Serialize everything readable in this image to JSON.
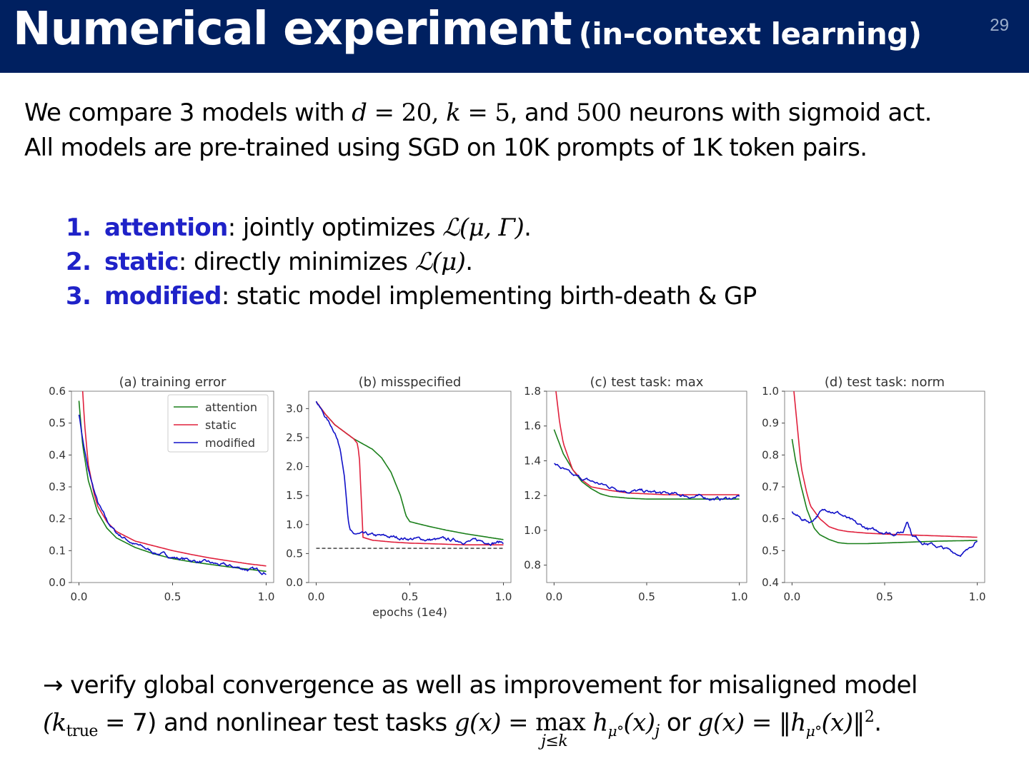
{
  "slide": {
    "title_main": "Numerical experiment",
    "title_sub": "(in-context learning)",
    "page_number": "29"
  },
  "intro": {
    "l1_a": "We compare 3 models with ",
    "l1_d": "d",
    "l1_eq1": " = 20, ",
    "l1_k": "k",
    "l1_eq2": " = 5",
    "l1_b": ", and ",
    "l1_n": "500",
    "l1_c": " neurons with sigmoid act.",
    "l2": "All models are pre-trained using SGD on 10K prompts of 1K token pairs."
  },
  "models": [
    {
      "num": "1.",
      "name": "attention",
      "desc": ": jointly optimizes ",
      "math": "ℒ(μ, Γ)",
      "end": "."
    },
    {
      "num": "2.",
      "name": "static",
      "desc": ": directly minimizes ",
      "math": "ℒ(μ)",
      "end": "."
    },
    {
      "num": "3.",
      "name": "modified",
      "desc": ": static model implementing birth-death & GP",
      "math": "",
      "end": ""
    }
  ],
  "conclusion": {
    "l1": "→ verify global convergence as well as improvement for misaligned model",
    "l2_a": "(k",
    "l2_sub": "true",
    "l2_b": " = 7) and nonlinear test tasks ",
    "l2_g1": "g(x) = ",
    "l2_max": "max",
    "l2_maxsub": "j≤k",
    "l2_h1": " h",
    "l2_hsub": "μ°",
    "l2_h1b": "(x)",
    "l2_jsub": "j",
    "l2_or": " or ",
    "l2_g2": "g(x) = ‖h",
    "l2_h2sub": "μ°",
    "l2_g2b": "(x)‖",
    "l2_sup": "2",
    "l2_end": "."
  },
  "colors": {
    "title_bg": "#002060",
    "highlight": "#1f22c8",
    "attention": "#1a7f1a",
    "static": "#e0203c",
    "modified": "#1010c8",
    "baseline": "#000000"
  },
  "chart_data": [
    {
      "type": "line",
      "title": "(a) training error",
      "xlabel": "",
      "xlim": [
        -0.04,
        1.04
      ],
      "ylim": [
        0.0,
        0.6
      ],
      "xticks": [
        0.0,
        0.5,
        1.0
      ],
      "xtick_labels": [
        "0.0",
        "0.5",
        "1.0"
      ],
      "yticks": [
        0.0,
        0.1,
        0.2,
        0.3,
        0.4,
        0.5,
        0.6
      ],
      "ytick_labels": [
        "0.0",
        "0.1",
        "0.2",
        "0.3",
        "0.4",
        "0.5",
        "0.6"
      ],
      "legend": {
        "placement": "top-right",
        "entries": [
          "attention",
          "static",
          "modified"
        ]
      },
      "series": [
        {
          "name": "attention",
          "noisy": false,
          "x": [
            0,
            0.02,
            0.05,
            0.1,
            0.15,
            0.2,
            0.3,
            0.4,
            0.5,
            0.6,
            0.7,
            0.8,
            0.9,
            1.0
          ],
          "y": [
            0.57,
            0.43,
            0.32,
            0.22,
            0.17,
            0.14,
            0.11,
            0.09,
            0.075,
            0.065,
            0.057,
            0.049,
            0.042,
            0.035
          ]
        },
        {
          "name": "static",
          "noisy": false,
          "x": [
            0.02,
            0.03,
            0.05,
            0.08,
            0.1,
            0.15,
            0.2,
            0.3,
            0.4,
            0.5,
            0.6,
            0.7,
            0.8,
            0.9,
            1.0
          ],
          "y": [
            0.6,
            0.5,
            0.37,
            0.28,
            0.24,
            0.19,
            0.16,
            0.13,
            0.115,
            0.1,
            0.088,
            0.077,
            0.068,
            0.059,
            0.052
          ]
        },
        {
          "name": "modified",
          "noisy": true,
          "x": [
            0,
            0.02,
            0.05,
            0.1,
            0.15,
            0.2,
            0.3,
            0.4,
            0.5,
            0.6,
            0.7,
            0.8,
            0.9,
            1.0
          ],
          "y": [
            0.53,
            0.45,
            0.35,
            0.25,
            0.19,
            0.155,
            0.12,
            0.095,
            0.08,
            0.07,
            0.06,
            0.05,
            0.042,
            0.033
          ]
        }
      ]
    },
    {
      "type": "line",
      "title": "(b) misspecified",
      "xlabel": "epochs (1e4)",
      "xlim": [
        -0.04,
        1.04
      ],
      "ylim": [
        0.0,
        3.3
      ],
      "xticks": [
        0.0,
        0.5,
        1.0
      ],
      "xtick_labels": [
        "0.0",
        "0.5",
        "1.0"
      ],
      "yticks": [
        0.0,
        0.5,
        1.0,
        1.5,
        2.0,
        2.5,
        3.0
      ],
      "ytick_labels": [
        "0.0",
        "0.5",
        "1.0",
        "1.5",
        "2.0",
        "2.5",
        "3.0"
      ],
      "baseline": 0.59,
      "series": [
        {
          "name": "attention",
          "noisy": false,
          "x": [
            0,
            0.05,
            0.1,
            0.15,
            0.2,
            0.3,
            0.35,
            0.4,
            0.45,
            0.48,
            0.5,
            0.6,
            0.7,
            0.8,
            0.9,
            1.0
          ],
          "y": [
            3.12,
            2.9,
            2.72,
            2.6,
            2.48,
            2.3,
            2.15,
            1.9,
            1.5,
            1.15,
            1.05,
            0.97,
            0.9,
            0.84,
            0.79,
            0.74
          ]
        },
        {
          "name": "static",
          "noisy": false,
          "x": [
            0,
            0.05,
            0.1,
            0.15,
            0.2,
            0.22,
            0.23,
            0.24,
            0.25,
            0.3,
            0.4,
            0.5,
            0.6,
            0.7,
            0.8,
            0.9,
            1.0
          ],
          "y": [
            3.12,
            2.9,
            2.72,
            2.6,
            2.48,
            2.4,
            2.2,
            1.5,
            0.78,
            0.73,
            0.7,
            0.68,
            0.67,
            0.66,
            0.65,
            0.65,
            0.65
          ]
        },
        {
          "name": "modified",
          "noisy": true,
          "x": [
            0,
            0.05,
            0.1,
            0.13,
            0.15,
            0.16,
            0.17,
            0.18,
            0.2,
            0.3,
            0.4,
            0.5,
            0.6,
            0.7,
            0.8,
            0.9,
            1.0
          ],
          "y": [
            3.12,
            2.85,
            2.6,
            2.3,
            1.9,
            1.5,
            1.1,
            0.88,
            0.83,
            0.8,
            0.78,
            0.76,
            0.74,
            0.73,
            0.72,
            0.71,
            0.7
          ]
        }
      ]
    },
    {
      "type": "line",
      "title": "(c) test task: max",
      "xlabel": "",
      "xlim": [
        -0.04,
        1.04
      ],
      "ylim": [
        0.7,
        1.8
      ],
      "xticks": [
        0.0,
        0.5,
        1.0
      ],
      "xtick_labels": [
        "0.0",
        "0.5",
        "1.0"
      ],
      "yticks": [
        0.8,
        1.0,
        1.2,
        1.4,
        1.6,
        1.8
      ],
      "ytick_labels": [
        "0.8",
        "1.0",
        "1.2",
        "1.4",
        "1.6",
        "1.8"
      ],
      "series": [
        {
          "name": "attention",
          "noisy": false,
          "x": [
            0,
            0.05,
            0.1,
            0.15,
            0.2,
            0.25,
            0.3,
            0.4,
            0.5,
            0.6,
            0.7,
            0.8,
            0.9,
            1.0
          ],
          "y": [
            1.58,
            1.44,
            1.35,
            1.28,
            1.24,
            1.21,
            1.195,
            1.185,
            1.18,
            1.18,
            1.18,
            1.18,
            1.18,
            1.18
          ]
        },
        {
          "name": "static",
          "noisy": false,
          "x": [
            0.01,
            0.03,
            0.05,
            0.1,
            0.15,
            0.2,
            0.3,
            0.4,
            0.5,
            0.6,
            0.7,
            0.8,
            0.9,
            1.0
          ],
          "y": [
            1.8,
            1.62,
            1.5,
            1.35,
            1.29,
            1.25,
            1.23,
            1.215,
            1.21,
            1.205,
            1.205,
            1.205,
            1.205,
            1.205
          ]
        },
        {
          "name": "modified",
          "noisy": true,
          "x": [
            0,
            0.05,
            0.1,
            0.2,
            0.3,
            0.4,
            0.5,
            0.6,
            0.7,
            0.8,
            0.9,
            1.0
          ],
          "y": [
            1.38,
            1.35,
            1.31,
            1.28,
            1.25,
            1.23,
            1.22,
            1.21,
            1.2,
            1.19,
            1.18,
            1.19
          ]
        }
      ]
    },
    {
      "type": "line",
      "title": "(d) test task: norm",
      "xlabel": "",
      "xlim": [
        -0.04,
        1.04
      ],
      "ylim": [
        0.4,
        1.0
      ],
      "xticks": [
        0.0,
        0.5,
        1.0
      ],
      "xtick_labels": [
        "0.0",
        "0.5",
        "1.0"
      ],
      "yticks": [
        0.4,
        0.5,
        0.6,
        0.7,
        0.8,
        0.9,
        1.0
      ],
      "ytick_labels": [
        "0.4",
        "0.5",
        "0.6",
        "0.7",
        "0.8",
        "0.9",
        "1.0"
      ],
      "series": [
        {
          "name": "attention",
          "noisy": false,
          "x": [
            0,
            0.02,
            0.05,
            0.08,
            0.1,
            0.12,
            0.15,
            0.2,
            0.25,
            0.3,
            0.4,
            0.5,
            0.6,
            0.7,
            0.8,
            0.9,
            1.0
          ],
          "y": [
            0.85,
            0.78,
            0.7,
            0.63,
            0.6,
            0.57,
            0.55,
            0.535,
            0.525,
            0.522,
            0.522,
            0.524,
            0.526,
            0.528,
            0.53,
            0.531,
            0.532
          ]
        },
        {
          "name": "static",
          "noisy": false,
          "x": [
            0.01,
            0.03,
            0.05,
            0.08,
            0.1,
            0.15,
            0.2,
            0.25,
            0.3,
            0.4,
            0.5,
            0.6,
            0.7,
            0.8,
            0.9,
            1.0
          ],
          "y": [
            1.0,
            0.88,
            0.76,
            0.68,
            0.64,
            0.6,
            0.575,
            0.565,
            0.56,
            0.555,
            0.552,
            0.55,
            0.548,
            0.546,
            0.544,
            0.542
          ]
        },
        {
          "name": "modified",
          "noisy": true,
          "x": [
            0,
            0.05,
            0.1,
            0.15,
            0.2,
            0.25,
            0.3,
            0.35,
            0.4,
            0.45,
            0.5,
            0.55,
            0.6,
            0.62,
            0.65,
            0.7,
            0.75,
            0.8,
            0.85,
            0.9,
            0.95,
            1.0
          ],
          "y": [
            0.62,
            0.6,
            0.59,
            0.62,
            0.63,
            0.62,
            0.6,
            0.58,
            0.57,
            0.56,
            0.56,
            0.555,
            0.56,
            0.6,
            0.55,
            0.53,
            0.52,
            0.51,
            0.5,
            0.49,
            0.5,
            0.54
          ]
        }
      ]
    }
  ]
}
